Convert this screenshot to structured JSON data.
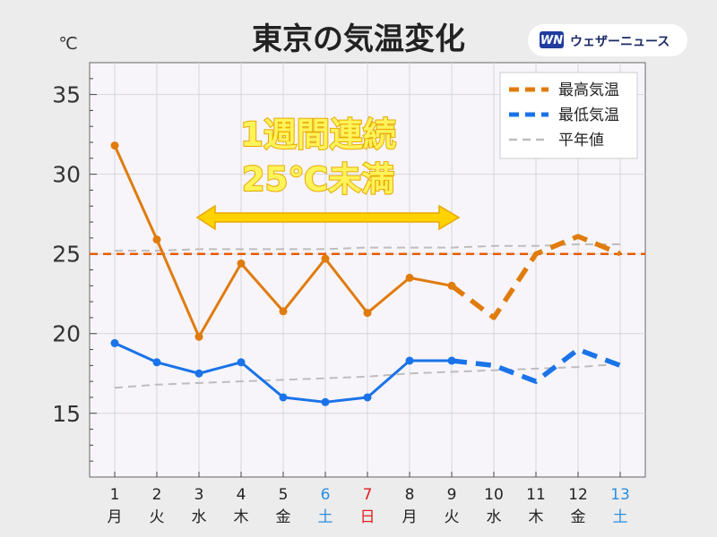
{
  "header": {
    "title": "東京の気温変化",
    "unit": "℃",
    "logo_mark": "WN",
    "logo_text": "ウェザーニュース"
  },
  "annotation": {
    "line1": "1週間連続",
    "line2": "25℃未満"
  },
  "colors": {
    "max_temp": "#e07b0c",
    "min_temp": "#1a73e8",
    "normal": "#bdbdbd",
    "threshold": "#e65c00",
    "saturday": "#2a8ee0",
    "sunday": "#e02020",
    "weekday": "#222222",
    "arrow": "#ffd200"
  },
  "chart_data": {
    "type": "line",
    "title": "東京の気温変化",
    "ylabel": "℃",
    "ylim": [
      11,
      37
    ],
    "yticks": [
      15,
      20,
      25,
      30,
      35
    ],
    "grid": true,
    "legend_position": "top-right",
    "x": [
      1,
      2,
      3,
      4,
      5,
      6,
      7,
      8,
      9,
      10,
      11,
      12,
      13
    ],
    "x_labels": [
      "1",
      "2",
      "3",
      "4",
      "5",
      "6",
      "7",
      "8",
      "9",
      "10",
      "11",
      "12",
      "13"
    ],
    "day_labels": [
      "月",
      "火",
      "水",
      "木",
      "金",
      "土",
      "日",
      "月",
      "火",
      "水",
      "木",
      "金",
      "土"
    ],
    "day_types": [
      "weekday",
      "weekday",
      "weekday",
      "weekday",
      "weekday",
      "saturday",
      "sunday",
      "weekday",
      "weekday",
      "weekday",
      "weekday",
      "weekday",
      "saturday"
    ],
    "observed_through_index": 8,
    "series": [
      {
        "name": "最高気温",
        "values": [
          31.8,
          25.9,
          19.8,
          24.4,
          21.4,
          24.7,
          21.3,
          23.5,
          23.0,
          21.0,
          25.0,
          26.1,
          25.0
        ]
      },
      {
        "name": "最低気温",
        "values": [
          19.4,
          18.2,
          17.5,
          18.2,
          16.0,
          15.7,
          16.0,
          18.3,
          18.3,
          18.0,
          17.0,
          19.0,
          18.0
        ]
      },
      {
        "name": "平年値",
        "values": [
          25.2,
          25.2,
          25.3,
          25.3,
          25.3,
          25.3,
          25.4,
          25.4,
          25.4,
          25.5,
          25.5,
          25.6,
          25.6
        ]
      },
      {
        "name": "平年値",
        "values": [
          16.6,
          16.8,
          16.9,
          17.0,
          17.1,
          17.2,
          17.3,
          17.5,
          17.6,
          17.7,
          17.8,
          17.9,
          18.1
        ]
      }
    ],
    "reference_line": {
      "value": 25
    }
  }
}
